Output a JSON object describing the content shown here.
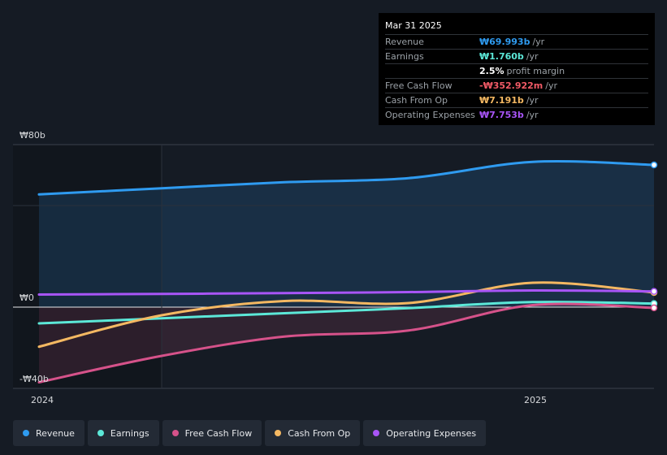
{
  "tooltip": {
    "date": "Mar 31 2025",
    "rows": [
      {
        "label": "Revenue",
        "value": "₩69.993b",
        "suffix": "/yr",
        "color": "#2f9bf0"
      },
      {
        "label": "Earnings",
        "value": "₩1.760b",
        "suffix": "/yr",
        "color": "#5ce8d8"
      },
      {
        "label": "",
        "value": "2.5%",
        "suffix": "profit margin",
        "color": "#ffffff"
      },
      {
        "label": "Free Cash Flow",
        "value": "-₩352.922m",
        "suffix": "/yr",
        "color": "#f15a66"
      },
      {
        "label": "Cash From Op",
        "value": "₩7.191b",
        "suffix": "/yr",
        "color": "#f4b862"
      },
      {
        "label": "Operating Expenses",
        "value": "₩7.753b",
        "suffix": "/yr",
        "color": "#a855f7"
      }
    ]
  },
  "axis": {
    "y_top": "₩80b",
    "y_zero": "₩0",
    "y_bottom": "-₩40b",
    "x_labels": [
      "2024",
      "2025"
    ]
  },
  "legend": [
    {
      "label": "Revenue",
      "color": "#2f9bf0"
    },
    {
      "label": "Earnings",
      "color": "#5ce8d8"
    },
    {
      "label": "Free Cash Flow",
      "color": "#d6528a"
    },
    {
      "label": "Cash From Op",
      "color": "#f4b862"
    },
    {
      "label": "Operating Expenses",
      "color": "#a855f7"
    }
  ],
  "chart_data": {
    "type": "line",
    "ylim": [
      -40,
      80
    ],
    "x": [
      "2023-12-31",
      "2024-03-31",
      "2024-06-30",
      "2024-09-30",
      "2024-12-31",
      "2025-03-31"
    ],
    "series": [
      {
        "name": "Revenue",
        "color": "#2f9bf0",
        "values": [
          55.5,
          58.5,
          61.5,
          63.5,
          71.5,
          70.0
        ]
      },
      {
        "name": "Earnings",
        "color": "#5ce8d8",
        "values": [
          -8.0,
          -5.5,
          -3.0,
          -0.5,
          2.5,
          1.76
        ]
      },
      {
        "name": "Free Cash Flow",
        "color": "#d6528a",
        "values": [
          -37.0,
          -24.0,
          -14.5,
          -11.5,
          1.0,
          -0.35
        ]
      },
      {
        "name": "Cash From Op",
        "color": "#f4b862",
        "values": [
          -19.5,
          -4.0,
          3.0,
          2.0,
          12.0,
          7.19
        ]
      },
      {
        "name": "Operating Expenses",
        "color": "#a855f7",
        "values": [
          6.2,
          6.5,
          6.9,
          7.4,
          8.2,
          7.75
        ]
      }
    ]
  }
}
